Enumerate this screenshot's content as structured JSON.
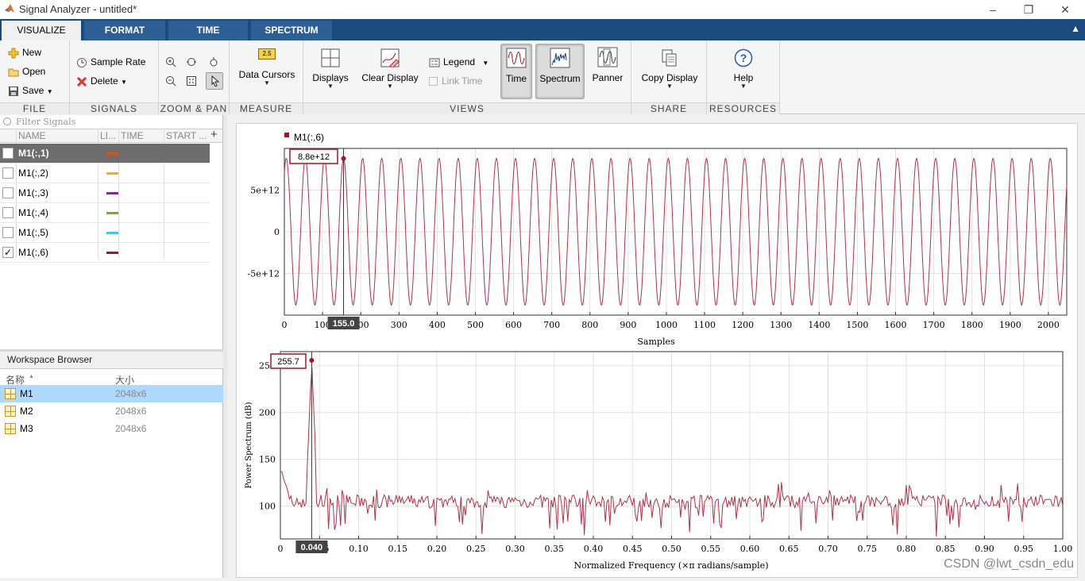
{
  "window": {
    "title": "Signal Analyzer - untitled*",
    "minimize_glyph": "–",
    "maximize_glyph": "❐",
    "close_glyph": "✕"
  },
  "tabs": [
    {
      "label": "VISUALIZE",
      "active": true
    },
    {
      "label": "FORMAT",
      "active": false
    },
    {
      "label": "TIME",
      "active": false
    },
    {
      "label": "SPECTRUM",
      "active": false
    }
  ],
  "toolstrip": {
    "file": {
      "title": "FILE",
      "new": "New",
      "open": "Open",
      "save": "Save"
    },
    "signals": {
      "title": "SIGNALS",
      "sample_rate": "Sample Rate",
      "delete": "Delete"
    },
    "zoom": {
      "title": "ZOOM & PAN"
    },
    "measure": {
      "title": "MEASURE",
      "data_cursors": "Data Cursors",
      "cursor_badge": "2.5"
    },
    "views": {
      "title": "VIEWS",
      "displays": "Displays",
      "clear_display": "Clear Display",
      "legend": "Legend",
      "link_time": "Link Time",
      "time": "Time",
      "spectrum": "Spectrum",
      "panner": "Panner"
    },
    "share": {
      "title": "SHARE",
      "copy_display": "Copy Display"
    },
    "resources": {
      "title": "RESOURCES",
      "help": "Help"
    }
  },
  "signal_table": {
    "filter_placeholder": "Filter Signals",
    "headers": {
      "name": "NAME",
      "line": "LI...",
      "time": "TIME",
      "start": "START ..."
    },
    "add_glyph": "+",
    "rows": [
      {
        "name": "M1(:,1)",
        "checked": false,
        "selected": true,
        "color": "#d95319"
      },
      {
        "name": "M1(:,2)",
        "checked": false,
        "selected": false,
        "color": "#edb120"
      },
      {
        "name": "M1(:,3)",
        "checked": false,
        "selected": false,
        "color": "#7e2f8e"
      },
      {
        "name": "M1(:,4)",
        "checked": false,
        "selected": false,
        "color": "#77ac30"
      },
      {
        "name": "M1(:,5)",
        "checked": false,
        "selected": false,
        "color": "#4dbeee"
      },
      {
        "name": "M1(:,6)",
        "checked": true,
        "selected": false,
        "color": "#a2142f"
      }
    ],
    "check_glyph": "✓"
  },
  "workspace": {
    "title": "Workspace Browser",
    "col_name": "名称",
    "col_sort_glyph": "▲",
    "col_size": "大小",
    "rows": [
      {
        "name": "M1",
        "size": "2048x6",
        "selected": true
      },
      {
        "name": "M2",
        "size": "2048x6",
        "selected": false
      },
      {
        "name": "M3",
        "size": "2048x6",
        "selected": false
      }
    ]
  },
  "time_plot": {
    "legend_label": "M1(:,6)",
    "xlabel": "Samples",
    "xticks": [
      "0",
      "100",
      "200",
      "300",
      "400",
      "500",
      "600",
      "700",
      "800",
      "900",
      "1000",
      "1100",
      "1200",
      "1300",
      "1400",
      "1500",
      "1600",
      "1700",
      "1800",
      "1900",
      "2000"
    ],
    "yticks": [
      "5e+12",
      "0",
      "-5e+12"
    ],
    "cursor_value": "8.8e+12",
    "cursor_x": "155.0",
    "line_color": "#a2142f"
  },
  "spectrum_plot": {
    "xlabel": "Normalized Frequency (×π radians/sample)",
    "ylabel": "Power Spectrum (dB)",
    "xticks": [
      "0",
      "0.05",
      "0.10",
      "0.15",
      "0.20",
      "0.25",
      "0.30",
      "0.35",
      "0.40",
      "0.45",
      "0.50",
      "0.55",
      "0.60",
      "0.65",
      "0.70",
      "0.75",
      "0.80",
      "0.85",
      "0.90",
      "0.95",
      "1.00"
    ],
    "yticks": [
      "250",
      "200",
      "150",
      "100"
    ],
    "cursor_value": "255.7",
    "cursor_x": "0.040",
    "line_color": "#a2142f"
  },
  "chart_data": [
    {
      "type": "line",
      "title": "",
      "xlabel": "Samples",
      "ylabel": "",
      "xlim": [
        0,
        2048
      ],
      "ylim": [
        -10000000000000.0,
        10000000000000.0
      ],
      "series": [
        {
          "name": "M1(:,6)",
          "amplitude": 8800000000000.0,
          "period_samples": 50,
          "peak_at": 155
        }
      ],
      "grid": true
    },
    {
      "type": "line",
      "title": "",
      "xlabel": "Normalized Frequency (×π radians/sample)",
      "ylabel": "Power Spectrum (dB)",
      "xlim": [
        0,
        1.0
      ],
      "ylim": [
        65,
        265
      ],
      "series": [
        {
          "name": "M1(:,6)",
          "peak_x": 0.04,
          "peak_y": 255.7,
          "noise_floor": 105
        }
      ],
      "grid": true
    }
  ],
  "watermark": "CSDN @lwt_csdn_edu"
}
